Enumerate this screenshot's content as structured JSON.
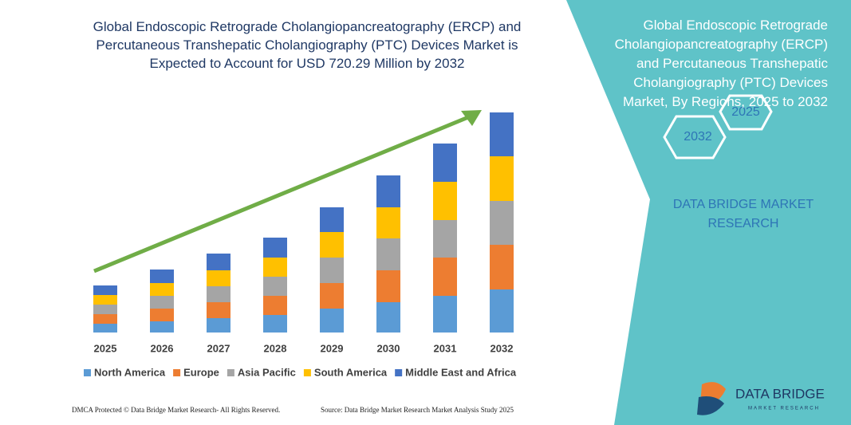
{
  "chart_data": {
    "type": "bar",
    "stacked": true,
    "title": "Global Endoscopic Retrograde Cholangiopancreatography (ERCP) and Percutaneous Transhepatic Cholangiography (PTC) Devices Market is Expected to Account for USD 720.29 Million by 2032",
    "categories": [
      "2025",
      "2026",
      "2027",
      "2028",
      "2029",
      "2030",
      "2031",
      "2032"
    ],
    "series": [
      {
        "name": "North America",
        "color": "#5b9bd5",
        "values": [
          11,
          14,
          18,
          22,
          30,
          38,
          46,
          54
        ]
      },
      {
        "name": "Europe",
        "color": "#ed7d31",
        "values": [
          12,
          16,
          20,
          24,
          32,
          40,
          48,
          56
        ]
      },
      {
        "name": "Asia Pacific",
        "color": "#a5a5a5",
        "values": [
          12,
          16,
          20,
          24,
          32,
          40,
          47,
          55
        ]
      },
      {
        "name": "South America",
        "color": "#ffc000",
        "values": [
          12,
          16,
          20,
          24,
          32,
          39,
          48,
          56
        ]
      },
      {
        "name": "Middle East and Africa",
        "color": "#4472c4",
        "values": [
          12,
          17,
          21,
          25,
          31,
          40,
          48,
          55
        ]
      }
    ],
    "legend": "bottom"
  },
  "side_panel": {
    "title": "Global Endoscopic Retrograde Cholangiopancreatography (ERCP) and Percutaneous Transhepatic Cholangiography (PTC) Devices Market, By Regions, 2025 to 2032",
    "hex_labels": [
      "2025",
      "2032"
    ],
    "brand": "DATA BRIDGE MARKET RESEARCH"
  },
  "logo": {
    "name": "DATA BRIDGE",
    "tagline": "MARKET RESEARCH"
  },
  "footer": {
    "left": "DMCA Protected © Data Bridge Market Research- All Rights Reserved.",
    "right": "Source: Data Bridge Market Research Market Analysis Study 2025"
  }
}
